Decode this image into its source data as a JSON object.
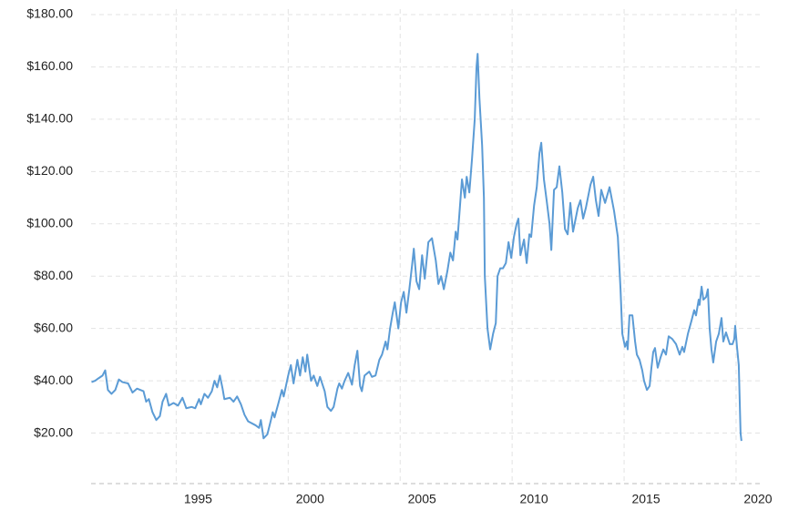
{
  "chart_data": {
    "type": "line",
    "x": [
      1991.22,
      1991.38,
      1991.54,
      1991.71,
      1991.83,
      1991.95,
      1992.11,
      1992.28,
      1992.44,
      1992.6,
      1992.85,
      1993.05,
      1993.25,
      1993.54,
      1993.66,
      1993.78,
      1993.94,
      1994.11,
      1994.27,
      1994.39,
      1994.55,
      1994.67,
      1994.88,
      1995.08,
      1995.28,
      1995.45,
      1995.69,
      1995.85,
      1996.02,
      1996.1,
      1996.26,
      1996.42,
      1996.59,
      1996.71,
      1996.83,
      1996.95,
      1997.07,
      1997.15,
      1997.4,
      1997.56,
      1997.72,
      1997.89,
      1998.05,
      1998.21,
      1998.54,
      1998.7,
      1998.78,
      1998.9,
      1999.07,
      1999.23,
      1999.31,
      1999.39,
      1999.55,
      1999.72,
      1999.8,
      2000,
      2000.12,
      2000.24,
      2000.41,
      2000.53,
      2000.65,
      2000.77,
      2000.85,
      2001.02,
      2001.14,
      2001.3,
      2001.42,
      2001.63,
      2001.75,
      2001.91,
      2002.03,
      2002.2,
      2002.28,
      2002.4,
      2002.52,
      2002.68,
      2002.85,
      2002.97,
      2003.09,
      2003.21,
      2003.29,
      2003.41,
      2003.62,
      2003.74,
      2003.9,
      2004.07,
      2004.19,
      2004.35,
      2004.43,
      2004.55,
      2004.67,
      2004.76,
      2004.92,
      2005.04,
      2005.16,
      2005.28,
      2005.41,
      2005.53,
      2005.61,
      2005.73,
      2005.85,
      2005.98,
      2006.1,
      2006.26,
      2006.42,
      2006.59,
      2006.71,
      2006.83,
      2006.95,
      2007.11,
      2007.24,
      2007.36,
      2007.48,
      2007.56,
      2007.76,
      2007.89,
      2007.97,
      2008.09,
      2008.21,
      2008.33,
      2008.41,
      2008.46,
      2008.54,
      2008.66,
      2008.74,
      2008.78,
      2008.9,
      2009.02,
      2009.15,
      2009.27,
      2009.35,
      2009.47,
      2009.59,
      2009.72,
      2009.84,
      2009.96,
      2010.08,
      2010.2,
      2010.28,
      2010.37,
      2010.53,
      2010.65,
      2010.77,
      2010.85,
      2010.98,
      2011.1,
      2011.22,
      2011.3,
      2011.42,
      2011.54,
      2011.67,
      2011.75,
      2011.87,
      2011.99,
      2012.11,
      2012.24,
      2012.36,
      2012.48,
      2012.6,
      2012.72,
      2012.93,
      2013.05,
      2013.17,
      2013.29,
      2013.5,
      2013.62,
      2013.74,
      2013.86,
      2013.98,
      2014.15,
      2014.35,
      2014.55,
      2014.72,
      2014.84,
      2014.92,
      2015.04,
      2015.12,
      2015.16,
      2015.24,
      2015.37,
      2015.49,
      2015.57,
      2015.69,
      2015.81,
      2015.89,
      2016.02,
      2016.14,
      2016.22,
      2016.3,
      2016.38,
      2016.5,
      2016.63,
      2016.75,
      2016.87,
      2016.99,
      2017.15,
      2017.32,
      2017.48,
      2017.6,
      2017.68,
      2017.85,
      2018.01,
      2018.13,
      2018.21,
      2018.33,
      2018.37,
      2018.46,
      2018.54,
      2018.66,
      2018.74,
      2018.82,
      2018.9,
      2018.98,
      2019.11,
      2019.23,
      2019.35,
      2019.43,
      2019.55,
      2019.72,
      2019.84,
      2019.92,
      2019.96,
      2020.04,
      2020.12,
      2020.2,
      2020.24
    ],
    "series": [
      {
        "color": "#5b9bd5",
        "values": [
          39.5,
          40,
          41,
          42,
          44,
          36.5,
          35,
          36.5,
          40.5,
          39.5,
          39,
          35.5,
          37,
          36,
          32,
          33,
          28,
          25,
          26.5,
          32,
          35,
          30.5,
          31.5,
          30.5,
          33.5,
          29.5,
          30,
          29.5,
          33,
          31,
          35,
          33.5,
          36,
          40,
          37.5,
          42,
          37,
          33,
          33.5,
          32,
          34,
          31,
          27,
          24.5,
          23,
          22,
          25,
          18,
          19.5,
          25,
          28,
          26,
          31,
          36.5,
          34,
          42,
          46,
          39,
          48,
          42,
          49,
          43.5,
          50,
          40,
          42,
          38,
          41.5,
          36,
          30,
          28.5,
          30,
          37,
          39,
          37,
          40,
          43,
          38.5,
          46,
          51.5,
          38,
          36,
          42,
          43.5,
          41.5,
          42,
          48,
          50,
          55,
          52,
          60,
          66,
          70,
          60,
          70,
          74,
          66,
          75,
          84,
          90.5,
          78,
          75,
          88,
          79,
          93,
          94.5,
          86,
          77,
          80,
          75,
          82,
          89,
          86,
          97,
          94,
          117,
          110,
          118,
          112,
          125,
          140,
          160,
          165,
          148,
          130,
          110,
          80,
          60,
          52,
          58,
          62,
          80,
          83,
          83,
          85,
          93,
          87,
          95,
          100,
          102,
          88,
          94,
          85,
          96,
          95,
          107,
          114,
          127,
          131,
          117,
          109,
          100,
          90,
          113,
          114,
          122,
          112,
          98,
          96,
          108,
          97,
          106,
          109,
          102,
          106,
          115,
          118,
          109,
          103,
          113,
          108,
          114,
          105,
          95,
          75,
          58,
          53,
          55,
          52,
          65,
          65,
          55,
          50,
          48,
          44,
          40,
          36.5,
          38,
          45,
          51,
          52.5,
          45,
          49,
          52,
          50,
          57,
          56,
          54,
          50,
          53,
          51,
          58,
          63,
          67,
          65,
          71,
          69,
          76,
          71,
          72,
          75,
          60,
          52,
          47,
          55,
          58,
          64,
          55,
          58.5,
          54,
          54,
          56,
          61,
          53,
          46,
          20,
          17
        ]
      }
    ],
    "xlim": [
      1991.2,
      2021.1
    ],
    "xticks": [
      1995,
      2000,
      2005,
      2010,
      2015,
      2020
    ],
    "ylim": [
      0,
      180
    ],
    "yticks": [
      {
        "value": 20,
        "label": "$20.00"
      },
      {
        "value": 40,
        "label": "$40.00"
      },
      {
        "value": 60,
        "label": "$60.00"
      },
      {
        "value": 80,
        "label": "$80.00"
      },
      {
        "value": 100,
        "label": "$100.00"
      },
      {
        "value": 120,
        "label": "$120.00"
      },
      {
        "value": 140,
        "label": "$140.00"
      },
      {
        "value": 160,
        "label": "$160.00"
      },
      {
        "value": 180,
        "label": "$180.00"
      }
    ],
    "grid": true
  }
}
